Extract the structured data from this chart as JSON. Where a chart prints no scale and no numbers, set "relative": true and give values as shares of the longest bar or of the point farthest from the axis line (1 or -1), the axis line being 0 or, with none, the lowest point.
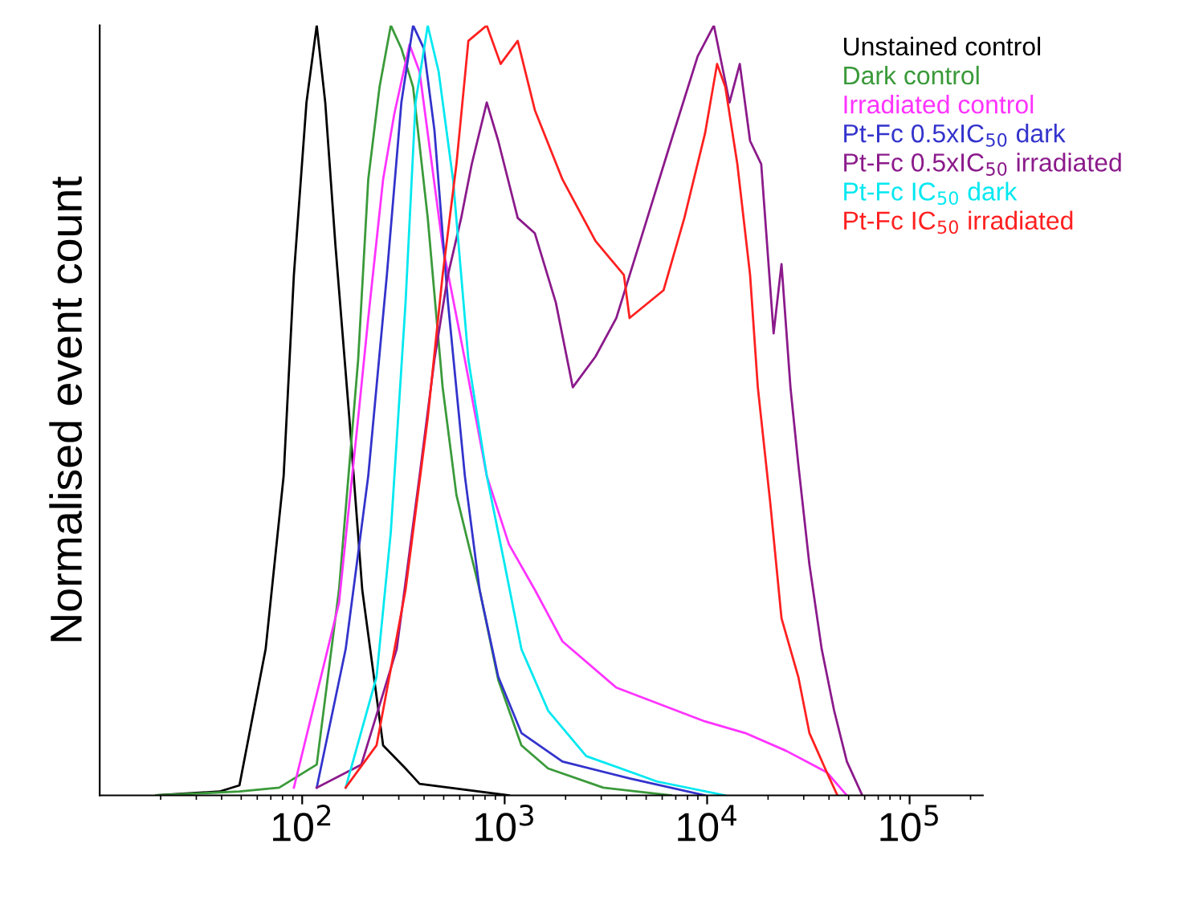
{
  "chart_data": {
    "type": "line",
    "relative": true,
    "ylabel": "Normalised event count",
    "log": "x",
    "xlim": [
      10,
      230000
    ],
    "xticks": [
      {
        "value": 100,
        "label": "10$^{2}$"
      },
      {
        "value": 1000,
        "label": "10$^{3}$"
      },
      {
        "value": 10000,
        "label": "10$^{4}$"
      },
      {
        "value": 100000,
        "label": "10$^{5}$"
      }
    ],
    "legend": "top right",
    "grid": false,
    "series": [
      {
        "name": "Unstained control",
        "color": "#000000",
        "x": [
          19,
          39,
          49,
          66,
          81,
          91,
          105,
          118,
          130,
          146,
          171,
          198,
          251,
          324,
          380,
          1050
        ],
        "values": [
          0,
          0.005,
          0.013,
          0.19,
          0.415,
          0.676,
          0.9,
          1.0,
          0.9,
          0.714,
          0.49,
          0.267,
          0.065,
          0.035,
          0.015,
          0
        ]
      },
      {
        "name": "Dark control",
        "color": "#3a9a3a",
        "x": [
          19,
          49,
          77,
          118,
          152,
          189,
          212,
          241,
          274,
          309,
          353,
          417,
          494,
          578,
          752,
          930,
          1210,
          1640,
          3070,
          6640
        ],
        "values": [
          0,
          0.005,
          0.01,
          0.04,
          0.267,
          0.566,
          0.8,
          0.92,
          1.0,
          0.97,
          0.92,
          0.75,
          0.53,
          0.39,
          0.267,
          0.15,
          0.065,
          0.035,
          0.01,
          0
        ]
      },
      {
        "name": "Irradiated control",
        "color": "#ff33ff",
        "x": [
          91,
          152,
          189,
          212,
          251,
          285,
          339,
          380,
          494,
          636,
          816,
          1050,
          1410,
          1930,
          3560,
          9770,
          15400,
          24500,
          39000,
          49000
        ],
        "values": [
          0.01,
          0.25,
          0.49,
          0.62,
          0.8,
          0.885,
          0.975,
          0.94,
          0.714,
          0.566,
          0.415,
          0.326,
          0.267,
          0.2,
          0.14,
          0.096,
          0.081,
          0.058,
          0.03,
          0
        ]
      },
      {
        "name": "Pt-Fc 0.5xIC$_{50}$ dark",
        "color": "#3333cc",
        "x": [
          118,
          164,
          212,
          262,
          309,
          353,
          399,
          450,
          525,
          636,
          752,
          930,
          1210,
          1930,
          4140,
          9770
        ],
        "values": [
          0.01,
          0.19,
          0.415,
          0.676,
          0.9,
          1.0,
          0.97,
          0.864,
          0.64,
          0.415,
          0.267,
          0.154,
          0.081,
          0.044,
          0.022,
          0
        ]
      },
      {
        "name": "Pt-Fc 0.5xIC$_{50}$ irradiated",
        "color": "#8b1a8b",
        "x": [
          118,
          196,
          293,
          380,
          450,
          525,
          610,
          688,
          816,
          930,
          1160,
          1410,
          1790,
          2170,
          2810,
          3560,
          4800,
          6640,
          8980,
          10800,
          12900,
          14500,
          16300,
          18500,
          21300,
          23300,
          25800,
          28200,
          32000,
          36800,
          42400,
          49000,
          58400
        ],
        "values": [
          0.01,
          0.04,
          0.19,
          0.415,
          0.566,
          0.676,
          0.75,
          0.82,
          0.9,
          0.85,
          0.75,
          0.73,
          0.64,
          0.53,
          0.57,
          0.62,
          0.73,
          0.85,
          0.96,
          1.0,
          0.9,
          0.95,
          0.85,
          0.82,
          0.6,
          0.69,
          0.53,
          0.43,
          0.3,
          0.19,
          0.11,
          0.044,
          0
        ]
      },
      {
        "name": "Pt-Fc IC$_{50}$ dark",
        "color": "#00e8f0",
        "x": [
          164,
          233,
          274,
          324,
          363,
          417,
          472,
          556,
          662,
          816,
          1000,
          1210,
          1640,
          2530,
          5660,
          12300
        ],
        "values": [
          0.01,
          0.154,
          0.342,
          0.64,
          0.9,
          1.0,
          0.94,
          0.8,
          0.566,
          0.415,
          0.3,
          0.19,
          0.11,
          0.051,
          0.018,
          0
        ]
      },
      {
        "name": "Pt-Fc IC$_{50}$ irradiated",
        "color": "#ff2020",
        "x": [
          164,
          233,
          324,
          417,
          494,
          578,
          662,
          816,
          955,
          1160,
          1410,
          1930,
          2810,
          3880,
          4140,
          6090,
          7720,
          9770,
          11200,
          12300,
          14100,
          16300,
          17800,
          20500,
          23300,
          28200,
          32000,
          39000,
          44000
        ],
        "values": [
          0.01,
          0.065,
          0.267,
          0.49,
          0.676,
          0.82,
          0.98,
          1.0,
          0.95,
          0.98,
          0.89,
          0.8,
          0.72,
          0.676,
          0.62,
          0.656,
          0.75,
          0.86,
          0.95,
          0.92,
          0.82,
          0.676,
          0.53,
          0.38,
          0.23,
          0.154,
          0.081,
          0.03,
          0
        ]
      }
    ]
  }
}
